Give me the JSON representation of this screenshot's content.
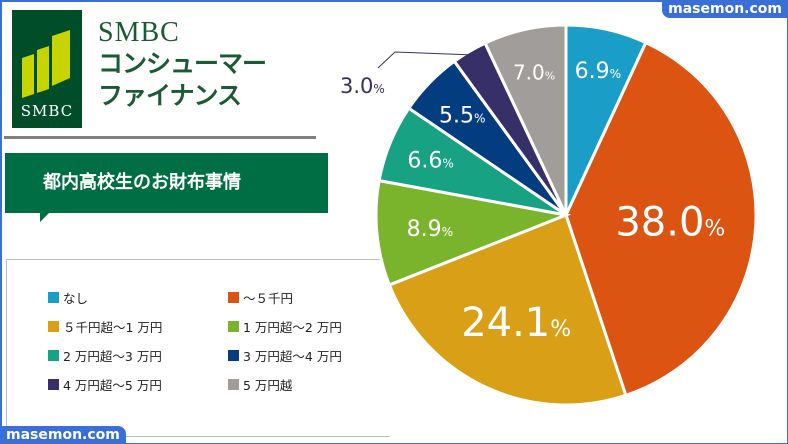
{
  "brand": {
    "logo_text": "SMBC",
    "name_en": "SMBC",
    "name_jp_line1": "コンシューマー",
    "name_jp_line2": "ファイナンス",
    "colors": {
      "dark_green": "#004d2a",
      "lime": "#c8d400"
    }
  },
  "title": "都内高校生のお財布事情",
  "watermark": "masemon.com",
  "legend": [
    {
      "label": "なし",
      "color": "#1a9dc6"
    },
    {
      "label": "～５千円",
      "color": "#dc5412"
    },
    {
      "label": " ５千円超～1 万円",
      "color": "#d99f17"
    },
    {
      "label": "1 万円超～2 万円",
      "color": "#7ab42c"
    },
    {
      "label": "2 万円超～3 万円",
      "color": "#16a283"
    },
    {
      "label": "3 万円超～4 万円",
      "color": "#043d7f"
    },
    {
      "label": "4 万円超～5 万円",
      "color": "#372f68"
    },
    {
      "label": "5 万円越",
      "color": "#a19d9b"
    }
  ],
  "chart_data": {
    "type": "pie",
    "title": "都内高校生のお財布事情",
    "categories": [
      "なし",
      "～５千円",
      "５千円超～1 万円",
      "1 万円超～2 万円",
      "2 万円超～3 万円",
      "3 万円超～4 万円",
      "4 万円超～5 万円",
      "5 万円越"
    ],
    "values": [
      6.9,
      38.0,
      24.1,
      8.9,
      6.6,
      5.5,
      3.0,
      7.0
    ],
    "labels": [
      "6.9",
      "38.0",
      "24.1",
      "8.9",
      "6.6",
      "5.5",
      "3.0",
      "7.0"
    ],
    "unit": "%",
    "colors": [
      "#1a9dc6",
      "#dc5412",
      "#d99f17",
      "#7ab42c",
      "#16a283",
      "#043d7f",
      "#372f68",
      "#a19d9b"
    ],
    "start_angle": "12 o'clock",
    "direction": "clockwise",
    "legend_position": "bottom-left"
  }
}
